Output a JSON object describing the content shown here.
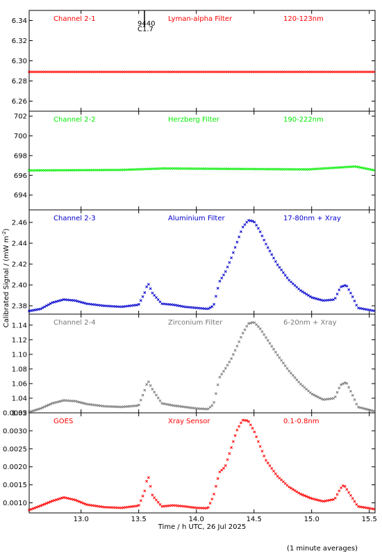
{
  "chart_data": [
    {
      "type": "scatter",
      "channel_label": "Channel 2-1",
      "filter_label": "Lyman-alpha Filter",
      "band_label": "120-123nm",
      "color": "#ff0000",
      "ylim": [
        6.25,
        6.35
      ],
      "yticks": [
        "6.26",
        "6.28",
        "6.30",
        "6.32",
        "6.34"
      ],
      "ytick_values": [
        6.26,
        6.28,
        6.3,
        6.32,
        6.34
      ],
      "annotation": [
        "9440",
        "C1.7"
      ],
      "annotation_x": 13.55,
      "x": [
        12.55,
        15.55
      ],
      "y": [
        6.289,
        6.289
      ]
    },
    {
      "type": "scatter",
      "channel_label": "Channel 2-2",
      "filter_label": "Herzberg Filter",
      "band_label": "190-222nm",
      "color": "#00ee00",
      "ylim": [
        692.5,
        702.5
      ],
      "yticks": [
        "694",
        "696",
        "698",
        "700",
        "702"
      ],
      "ytick_values": [
        694,
        696,
        698,
        700,
        702
      ],
      "x": [
        12.55,
        13.35,
        13.72,
        14.97,
        15.38,
        15.55
      ],
      "y": [
        696.5,
        696.55,
        696.7,
        696.6,
        696.9,
        696.5
      ]
    },
    {
      "type": "scatter",
      "channel_label": "Channel 2-3",
      "filter_label": "Aluminium Filter",
      "band_label": "17-80nm + Xray",
      "color": "#0000cc",
      "ylim": [
        2.372,
        2.472
      ],
      "yticks": [
        "2.38",
        "2.40",
        "2.42",
        "2.44",
        "2.46"
      ],
      "ytick_values": [
        2.38,
        2.4,
        2.42,
        2.44,
        2.46
      ],
      "x": [
        12.55,
        12.65,
        12.75,
        12.85,
        12.95,
        13.05,
        13.2,
        13.35,
        13.5,
        13.55,
        13.58,
        13.62,
        13.7,
        13.8,
        13.9,
        14.0,
        14.1,
        14.15,
        14.2,
        14.25,
        14.3,
        14.35,
        14.4,
        14.45,
        14.5,
        14.55,
        14.6,
        14.7,
        14.8,
        14.9,
        15.0,
        15.1,
        15.2,
        15.25,
        15.3,
        15.35,
        15.4,
        15.5,
        15.55
      ],
      "y": [
        2.375,
        2.377,
        2.383,
        2.386,
        2.385,
        2.382,
        2.38,
        2.379,
        2.381,
        2.392,
        2.402,
        2.392,
        2.382,
        2.381,
        2.379,
        2.378,
        2.377,
        2.38,
        2.403,
        2.412,
        2.425,
        2.44,
        2.455,
        2.462,
        2.461,
        2.452,
        2.44,
        2.42,
        2.405,
        2.395,
        2.388,
        2.385,
        2.386,
        2.398,
        2.4,
        2.39,
        2.378,
        2.376,
        2.375
      ]
    },
    {
      "type": "scatter",
      "channel_label": "Channel 2-4",
      "filter_label": "Zirconium Filter",
      "band_label": "6-20nm + Xray",
      "color": "#777777",
      "ylim": [
        1.02,
        1.155
      ],
      "yticks": [
        "1.02",
        "1.04",
        "1.06",
        "1.08",
        "1.10",
        "1.12",
        "1.14"
      ],
      "ytick_values": [
        1.02,
        1.04,
        1.06,
        1.08,
        1.1,
        1.12,
        1.14
      ],
      "x": [
        12.55,
        12.65,
        12.75,
        12.85,
        12.95,
        13.05,
        13.2,
        13.35,
        13.5,
        13.55,
        13.58,
        13.62,
        13.7,
        13.8,
        13.9,
        14.0,
        14.1,
        14.15,
        14.2,
        14.25,
        14.3,
        14.35,
        14.4,
        14.45,
        14.5,
        14.55,
        14.6,
        14.7,
        14.8,
        14.9,
        15.0,
        15.1,
        15.2,
        15.25,
        15.3,
        15.35,
        15.4,
        15.5,
        15.55
      ],
      "y": [
        1.021,
        1.026,
        1.033,
        1.037,
        1.036,
        1.032,
        1.029,
        1.028,
        1.03,
        1.05,
        1.064,
        1.052,
        1.033,
        1.03,
        1.028,
        1.026,
        1.025,
        1.032,
        1.068,
        1.08,
        1.093,
        1.11,
        1.128,
        1.142,
        1.144,
        1.136,
        1.124,
        1.1,
        1.078,
        1.06,
        1.046,
        1.038,
        1.04,
        1.058,
        1.062,
        1.046,
        1.028,
        1.024,
        1.022
      ]
    },
    {
      "type": "scatter",
      "channel_label": "GOES",
      "filter_label": "Xray Sensor",
      "band_label": "0.1-0.8nm",
      "color": "#ff0000",
      "ylim": [
        0.00072,
        0.0035
      ],
      "yticks": [
        "0.0010",
        "0.0015",
        "0.0020",
        "0.0025",
        "0.0030",
        "0.0035"
      ],
      "ytick_values": [
        0.001,
        0.0015,
        0.002,
        0.0025,
        0.003,
        0.0035
      ],
      "x": [
        12.55,
        12.65,
        12.75,
        12.85,
        12.95,
        13.05,
        13.2,
        13.35,
        13.5,
        13.55,
        13.58,
        13.62,
        13.7,
        13.8,
        13.9,
        14.0,
        14.1,
        14.15,
        14.2,
        14.25,
        14.3,
        14.35,
        14.4,
        14.45,
        14.5,
        14.55,
        14.6,
        14.7,
        14.8,
        14.9,
        15.0,
        15.1,
        15.2,
        15.25,
        15.28,
        15.32,
        15.4,
        15.5,
        15.55
      ],
      "y": [
        0.0008,
        0.00092,
        0.00105,
        0.00115,
        0.00108,
        0.00095,
        0.00088,
        0.00086,
        0.00092,
        0.0013,
        0.00178,
        0.0012,
        0.0009,
        0.00093,
        0.0009,
        0.00086,
        0.00085,
        0.0012,
        0.00185,
        0.002,
        0.0025,
        0.003,
        0.0033,
        0.00328,
        0.003,
        0.0026,
        0.0022,
        0.00175,
        0.00145,
        0.00125,
        0.00112,
        0.00104,
        0.0011,
        0.0014,
        0.0015,
        0.0013,
        0.0009,
        0.00085,
        0.00082
      ]
    }
  ],
  "xaxis": {
    "xlim": [
      12.55,
      15.55
    ],
    "ticks": [
      "13.0",
      "13.5",
      "14.0",
      "14.5",
      "15.0",
      "15.5"
    ],
    "tick_values": [
      13.0,
      13.5,
      14.0,
      14.5,
      15.0,
      15.5
    ],
    "label": "Time / h UTC, 26 Jul 2025"
  },
  "ylabel": "Calibrated Signal / (mW m",
  "ylabel_sup": "-2",
  "ylabel_end": ")",
  "footnote": "(1 minute averages)"
}
